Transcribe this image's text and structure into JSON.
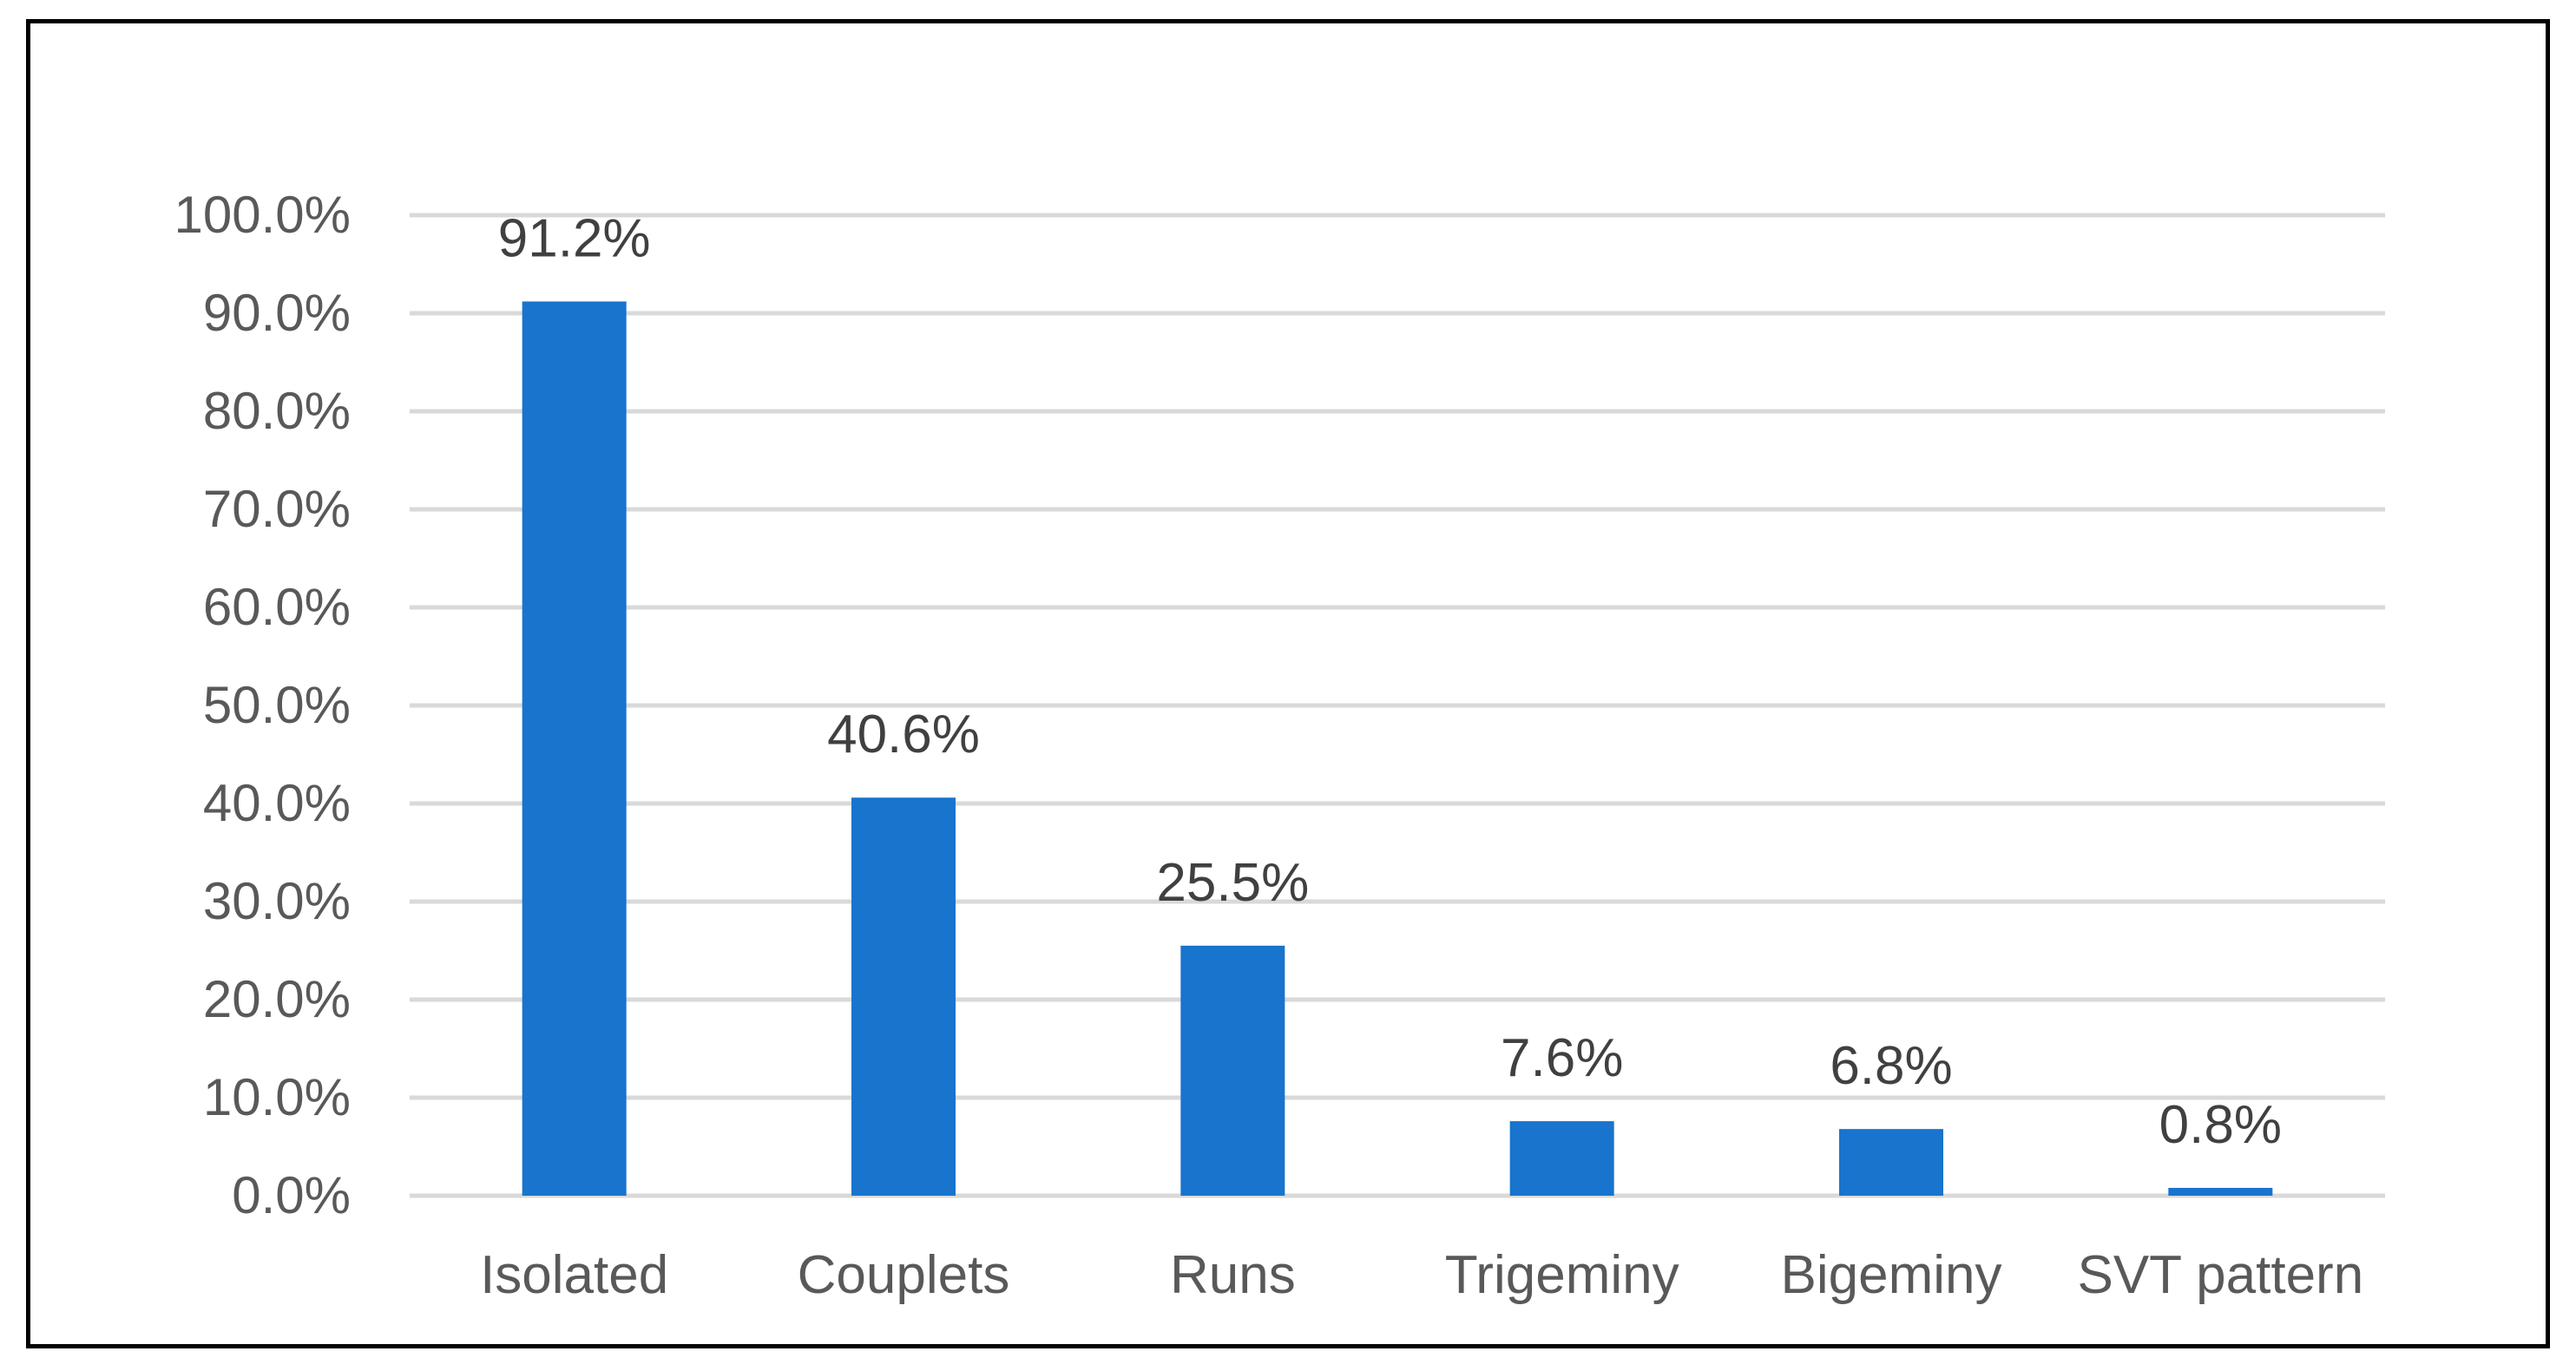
{
  "chart_data": {
    "type": "bar",
    "title": "",
    "xlabel": "",
    "ylabel": "",
    "categories": [
      "Isolated",
      "Couplets",
      "Runs",
      "Trigeminy",
      "Bigeminy",
      "SVT pattern"
    ],
    "values": [
      91.2,
      40.6,
      25.5,
      7.6,
      6.8,
      0.8
    ],
    "data_labels": [
      "91.2%",
      "40.6%",
      "25.5%",
      "7.6%",
      "6.8%",
      "0.8%"
    ],
    "ylim": [
      0,
      100
    ],
    "y_ticks": [
      0,
      10,
      20,
      30,
      40,
      50,
      60,
      70,
      80,
      90,
      100
    ],
    "y_tick_labels": [
      "0.0%",
      "10.0%",
      "20.0%",
      "30.0%",
      "40.0%",
      "50.0%",
      "60.0%",
      "70.0%",
      "80.0%",
      "90.0%",
      "100.0%"
    ],
    "grid": true,
    "legend": "none",
    "bar_color": "#1874CD",
    "gridline_color": "#D9D9D9",
    "text_color": "#595959"
  }
}
